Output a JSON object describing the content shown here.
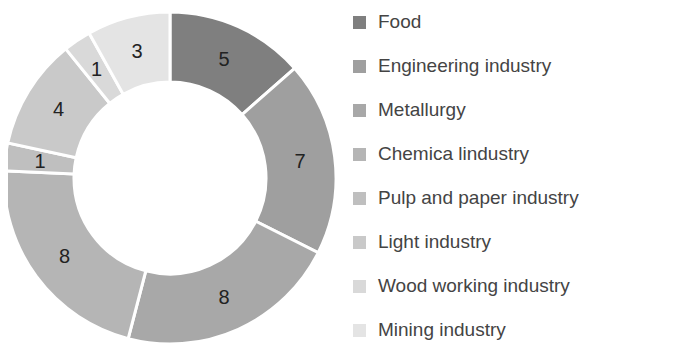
{
  "chart_data": {
    "type": "pie",
    "categories": [
      "Food",
      "Engineering industry",
      "Metallurgy",
      "Chemica lindustry",
      "Pulp and paper industry",
      "Light industry",
      "Wood working industry",
      "Mining industry"
    ],
    "values": [
      5,
      7,
      8,
      8,
      1,
      4,
      1,
      3
    ],
    "colors": [
      "#7f7f7f",
      "#9f9f9f",
      "#a8a8a8",
      "#b5b5b5",
      "#bfbfbf",
      "#c9c9c9",
      "#d9d9d9",
      "#e4e4e4"
    ],
    "data_labels": true,
    "legend": "right"
  }
}
